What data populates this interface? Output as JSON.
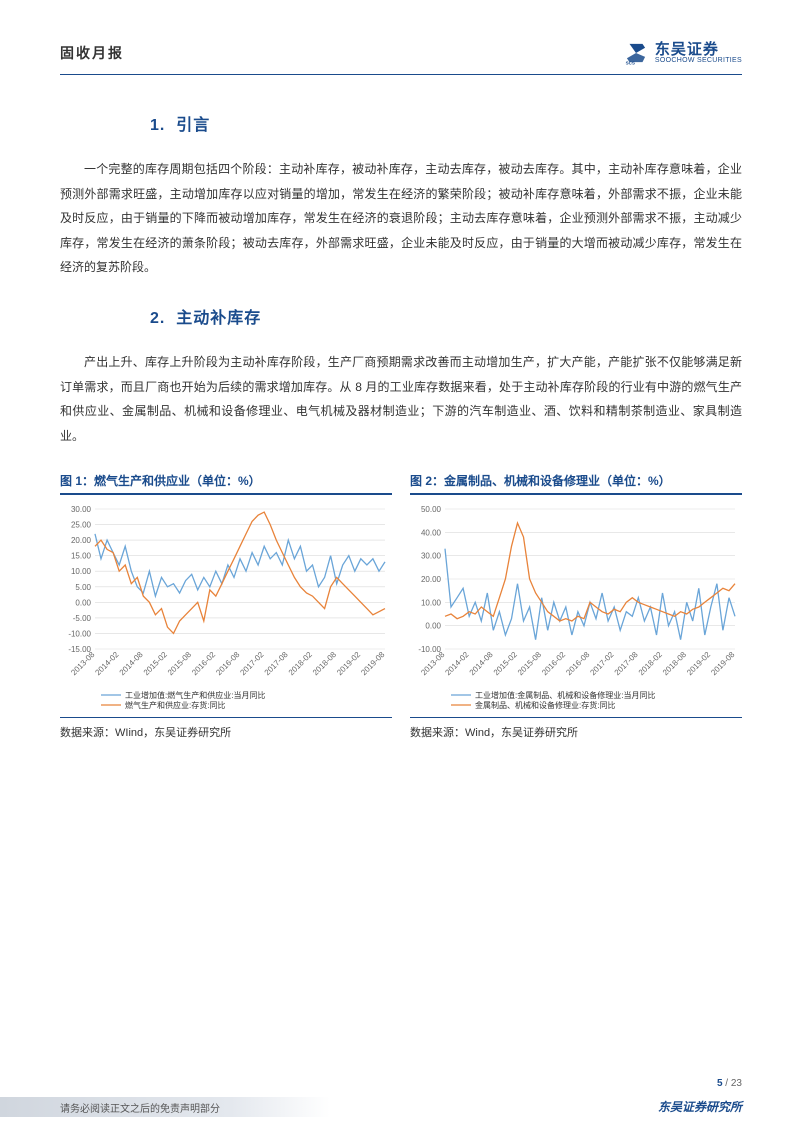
{
  "header": {
    "report_type": "固收月报",
    "logo_cn": "东吴证券",
    "logo_en": "SOOCHOW SECURITIES",
    "logo_tag": "SCS"
  },
  "sections": {
    "s1": {
      "num": "1.",
      "title": "引言"
    },
    "s2": {
      "num": "2.",
      "title": "主动补库存"
    }
  },
  "paragraphs": {
    "p1": "一个完整的库存周期包括四个阶段：主动补库存，被动补库存，主动去库存，被动去库存。其中，主动补库存意味着，企业预测外部需求旺盛，主动增加库存以应对销量的增加，常发生在经济的繁荣阶段；被动补库存意味着，外部需求不振，企业未能及时反应，由于销量的下降而被动增加库存，常发生在经济的衰退阶段；主动去库存意味着，企业预测外部需求不振，主动减少库存，常发生在经济的萧条阶段；被动去库存，外部需求旺盛，企业未能及时反应，由于销量的大增而被动减少库存，常发生在经济的复苏阶段。",
    "p2": "产出上升、库存上升阶段为主动补库存阶段，生产厂商预期需求改善而主动增加生产，扩大产能，产能扩张不仅能够满足新订单需求，而且厂商也开始为后续的需求增加库存。从 8 月的工业库存数据来看，处于主动补库存阶段的行业有中游的燃气生产和供应业、金属制品、机械和设备修理业、电气机械及器材制造业；下游的汽车制造业、酒、饮料和精制茶制造业、家具制造业。"
  },
  "chart1": {
    "type": "line",
    "title": "图 1：燃气生产和供应业（单位：%）",
    "source": "数据来源：WIind，东吴证券研究所",
    "x_labels": [
      "2013-08",
      "2014-02",
      "2014-08",
      "2015-02",
      "2015-08",
      "2016-02",
      "2016-08",
      "2017-02",
      "2017-08",
      "2018-02",
      "2018-08",
      "2019-02",
      "2019-08"
    ],
    "ylim": [
      -15,
      30
    ],
    "ytick_step": 5,
    "grid_color": "#d9d9d9",
    "background_color": "#ffffff",
    "series": [
      {
        "name": "工业增加值:燃气生产和供应业:当月同比",
        "color": "#6aa5d8",
        "values": [
          22,
          14,
          20,
          16,
          12,
          18,
          10,
          5,
          3,
          10,
          2,
          8,
          5,
          6,
          3,
          7,
          9,
          4,
          8,
          5,
          10,
          6,
          12,
          8,
          14,
          10,
          16,
          12,
          18,
          14,
          16,
          12,
          20,
          14,
          18,
          10,
          12,
          5,
          8,
          15,
          6,
          12,
          15,
          10,
          14,
          12,
          14,
          10,
          13
        ]
      },
      {
        "name": "燃气生产和供应业:存货:同比",
        "color": "#e8833a",
        "values": [
          18,
          20,
          17,
          16,
          10,
          12,
          6,
          8,
          2,
          0,
          -4,
          -2,
          -8,
          -10,
          -6,
          -4,
          -2,
          0,
          -6,
          4,
          2,
          6,
          10,
          14,
          18,
          22,
          26,
          28,
          29,
          25,
          20,
          16,
          12,
          8,
          5,
          3,
          2,
          0,
          -2,
          5,
          8,
          6,
          4,
          2,
          0,
          -2,
          -4,
          -3,
          -2
        ]
      }
    ],
    "legend_prefix": [
      "工业增加值:燃气生产和供应业:当月同比",
      "燃气生产和供应业:存货:同比"
    ],
    "axis_fontsize": 8,
    "label_fontsize": 8,
    "line_width": 1.3
  },
  "chart2": {
    "type": "line",
    "title": "图 2：金属制品、机械和设备修理业（单位：%）",
    "source": "数据来源：Wind，东吴证券研究所",
    "x_labels": [
      "2013-08",
      "2014-02",
      "2014-08",
      "2015-02",
      "2015-08",
      "2016-02",
      "2016-08",
      "2017-02",
      "2017-08",
      "2018-02",
      "2018-08",
      "2019-02",
      "2019-08"
    ],
    "ylim": [
      -10,
      50
    ],
    "ytick_step": 10,
    "grid_color": "#d9d9d9",
    "background_color": "#ffffff",
    "series": [
      {
        "name": "工业增加值:金属制品、机械和设备修理业:当月同比",
        "color": "#6aa5d8",
        "values": [
          33,
          8,
          12,
          16,
          4,
          10,
          2,
          14,
          -2,
          6,
          -4,
          3,
          18,
          2,
          8,
          -6,
          12,
          -2,
          10,
          2,
          8,
          -4,
          6,
          0,
          10,
          3,
          14,
          2,
          8,
          -2,
          6,
          4,
          12,
          2,
          8,
          -4,
          14,
          0,
          6,
          -6,
          10,
          2,
          16,
          -4,
          8,
          18,
          -2,
          12,
          4
        ]
      },
      {
        "name": "金属制品、机械和设备修理业:存货:同比",
        "color": "#e8833a",
        "values": [
          4,
          5,
          3,
          4,
          6,
          5,
          8,
          6,
          4,
          12,
          20,
          34,
          44,
          38,
          20,
          14,
          10,
          6,
          4,
          2,
          3,
          2,
          4,
          3,
          10,
          8,
          6,
          5,
          7,
          6,
          10,
          12,
          10,
          9,
          8,
          7,
          6,
          5,
          4,
          6,
          5,
          7,
          8,
          10,
          12,
          14,
          16,
          15,
          18
        ]
      }
    ],
    "legend_prefix": [
      "工业增加值:金属制品、机械和设备修理业:当月同比",
      "金属制品、机械和设备修理业:存货:同比"
    ],
    "axis_fontsize": 8,
    "label_fontsize": 8,
    "line_width": 1.3
  },
  "footer": {
    "disclaimer": "请务必阅读正文之后的免责声明部分",
    "org": "东吴证券研究所",
    "page_current": "5",
    "page_total": "23"
  }
}
